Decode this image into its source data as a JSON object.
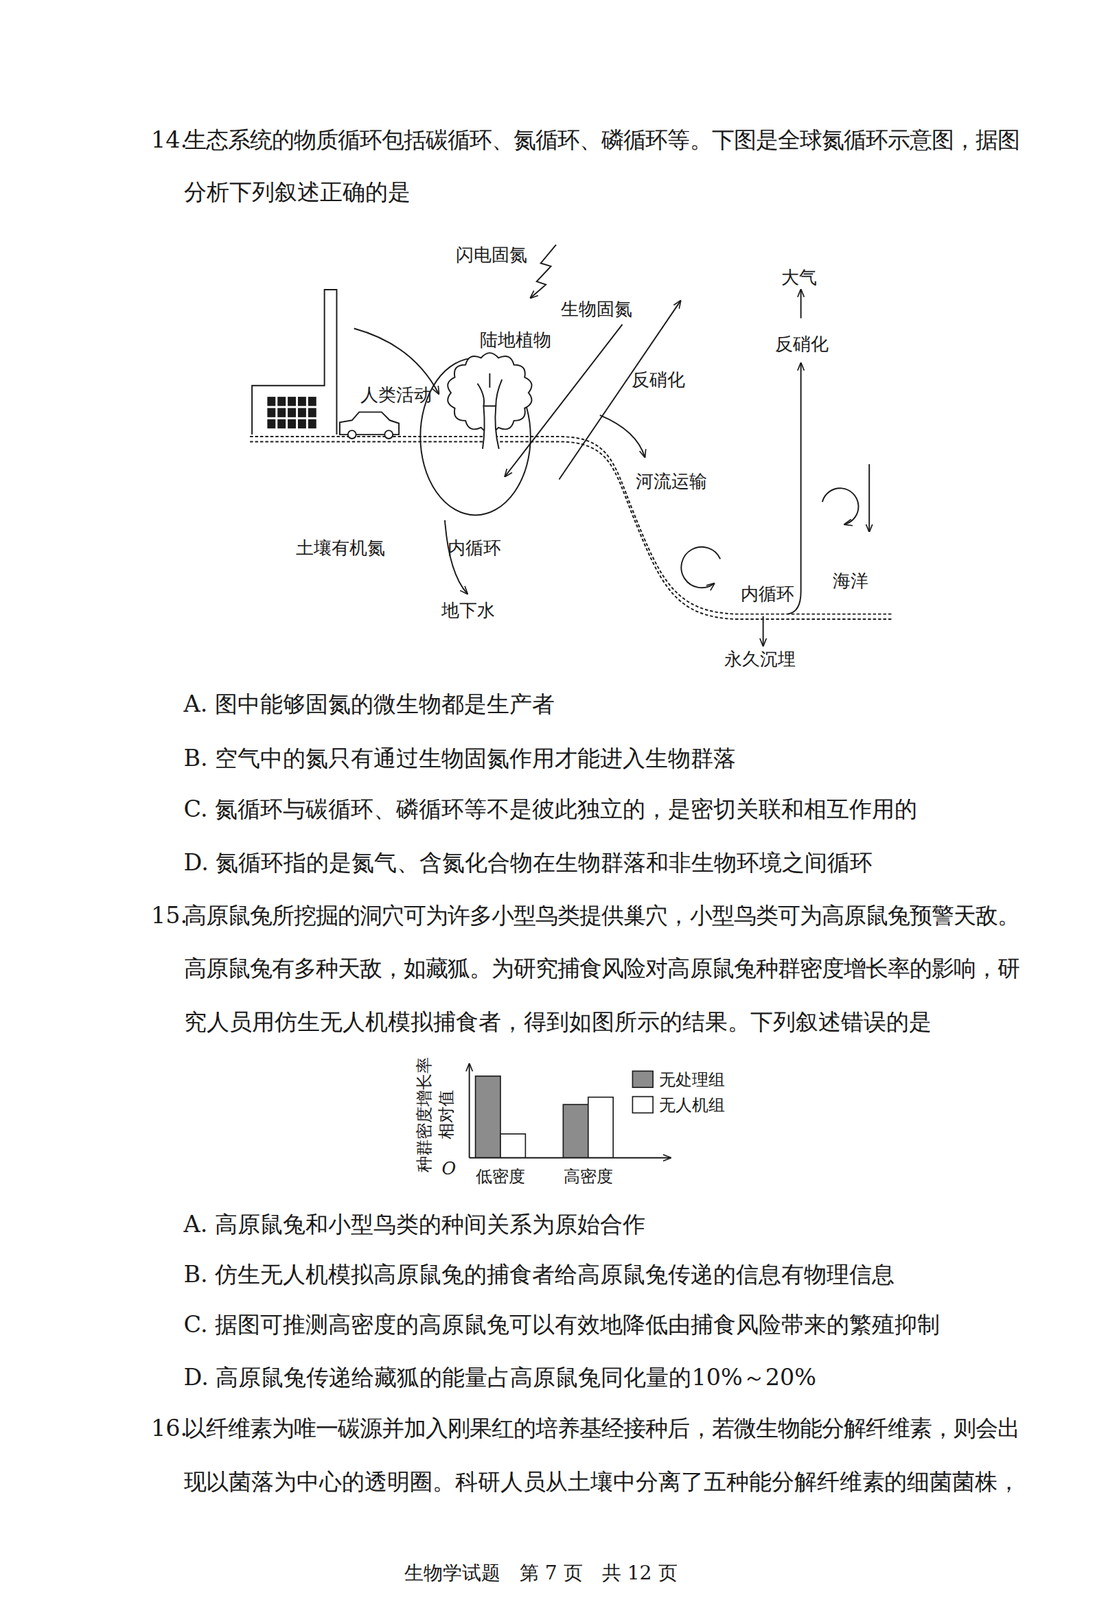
{
  "questions": [
    {
      "number": "14.",
      "stem": [
        "生态系统的物质循环包括碳循环、氮循环、磷循环等。下图是全球氮循环示意图，据图",
        "分析下列叙述正确的是"
      ],
      "options": [
        "A. 图中能够固氮的微生物都是生产者",
        "B. 空气中的氮只有通过生物固氮作用才能进入生物群落",
        "C. 氮循环与碳循环、磷循环等不是彼此独立的，是密切关联和相互作用的",
        "D. 氮循环指的是氮气、含氮化合物在生物群落和非生物环境之间循环"
      ]
    },
    {
      "number": "15.",
      "stem": [
        "高原鼠兔所挖掘的洞穴可为许多小型鸟类提供巢穴，小型鸟类可为高原鼠兔预警天敌。",
        "高原鼠兔有多种天敌，如藏狐。为研究捕食风险对高原鼠兔种群密度增长率的影响，研",
        "究人员用仿生无人机模拟捕食者，得到如图所示的结果。下列叙述错误的是"
      ],
      "options": [
        "A. 高原鼠兔和小型鸟类的种间关系为原始合作",
        "B. 仿生无人机模拟高原鼠兔的捕食者给高原鼠兔传递的信息有物理信息",
        "C. 据图可推测高密度的高原鼠兔可以有效地降低由捕食风险带来的繁殖抑制",
        "D. 高原鼠兔传递给藏狐的能量占高原鼠兔同化量的10%～20%"
      ]
    },
    {
      "number": "16.",
      "stem": [
        "以纤维素为唯一碳源并加入刚果红的培养基经接种后，若微生物能分解纤维素，则会出",
        "现以菌落为中心的透明圈。科研人员从土壤中分离了五种能分解纤维素的细菌菌株，"
      ],
      "options": []
    }
  ],
  "diagram": {
    "labels": [
      "闪电固氮",
      "生物固氮",
      "陆地植物",
      "人类活动",
      "反硝化",
      "河流运输",
      "土壤有机氮",
      "内循环",
      "地下水",
      "内循环",
      "海洋",
      "永久沉埋",
      "反硝化",
      "大气"
    ]
  },
  "chart_data": {
    "type": "bar",
    "y_label": [
      "种群密度增长率",
      "相对值"
    ],
    "annotations": [
      "O"
    ],
    "categories": [
      "低密度",
      "高密度"
    ],
    "series": [
      {
        "name": "无处理组",
        "color": "#8c8c8c",
        "values": [
          89,
          58
        ]
      },
      {
        "name": "无人机组",
        "color": "#ffffff",
        "values": [
          26,
          66
        ]
      }
    ],
    "ylim": [
      0,
      100
    ],
    "tick_labels": false,
    "legend": "right"
  },
  "footer": "生物学试题　第 7 页　共 12 页"
}
